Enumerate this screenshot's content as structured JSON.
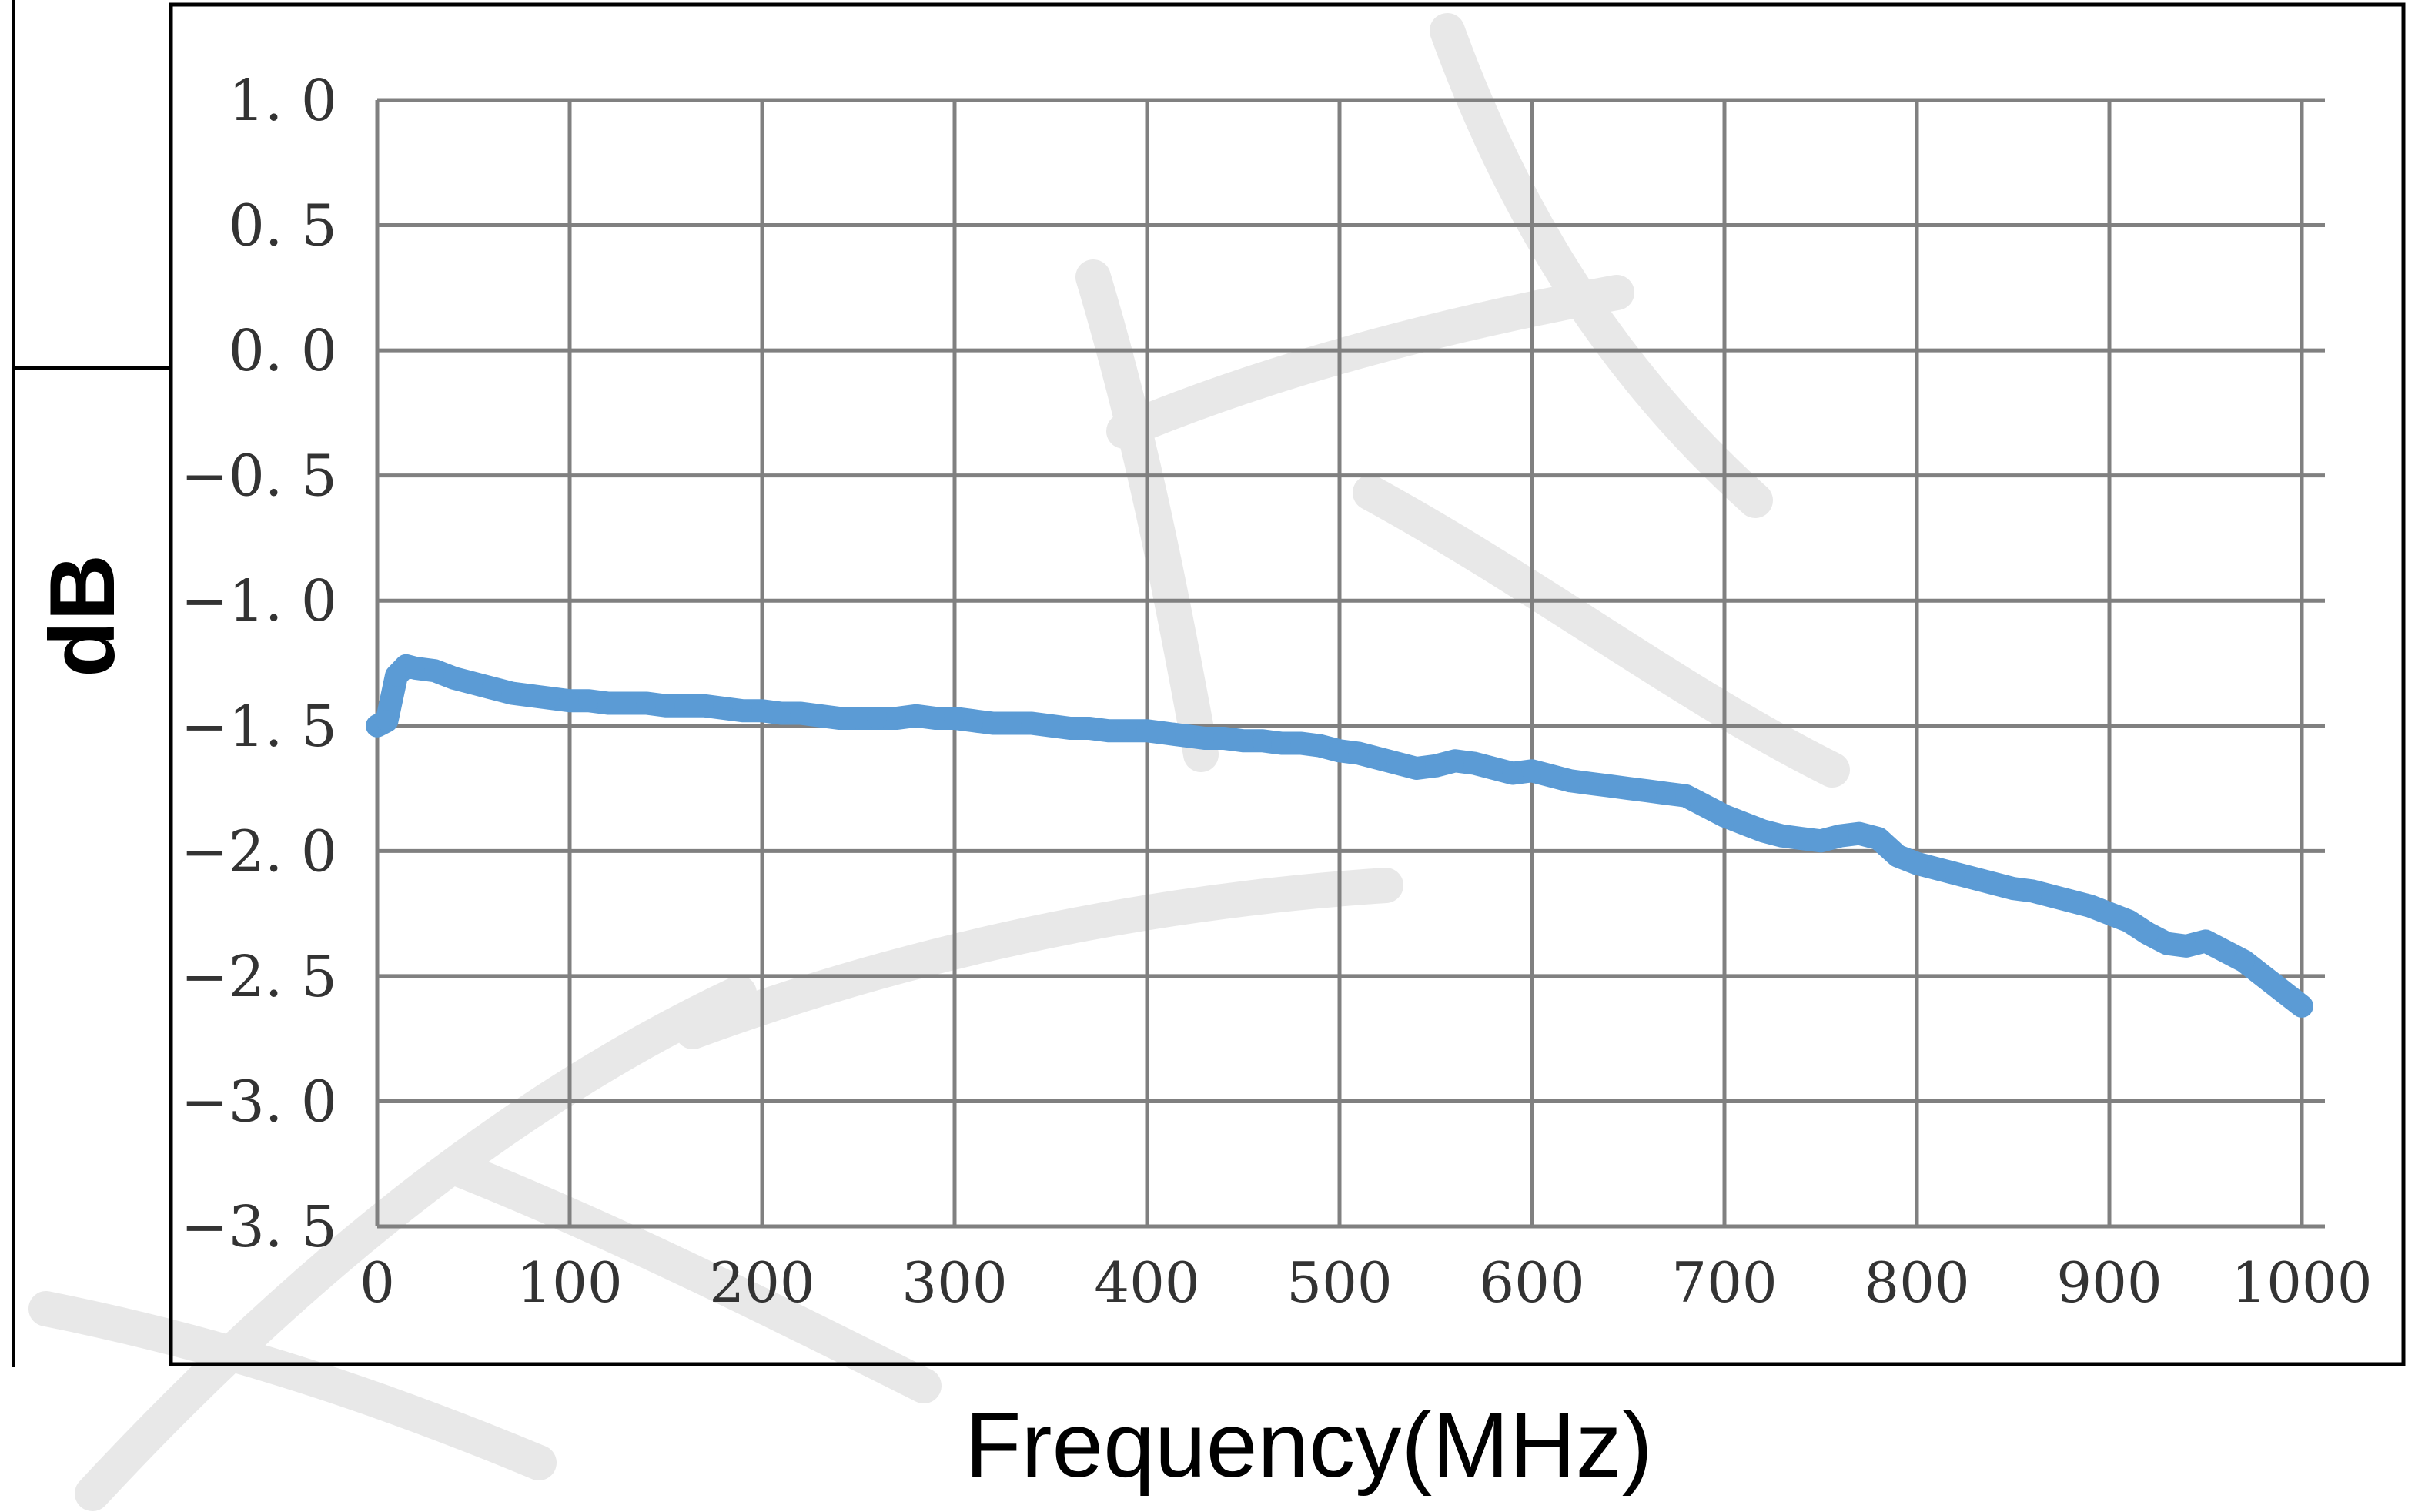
{
  "chart_data": {
    "type": "line",
    "title": "",
    "xlabel": "Frequency(MHz)",
    "ylabel": "dB",
    "xlim": [
      0,
      1000
    ],
    "ylim": [
      -3.5,
      1.0
    ],
    "x_ticks": [
      "0",
      "100",
      "200",
      "300",
      "400",
      "500",
      "600",
      "700",
      "800",
      "900",
      "1000"
    ],
    "y_ticks": [
      "1. 0",
      "0. 5",
      "0. 0",
      "−0. 5",
      "−1. 0",
      "−1. 5",
      "−2. 0",
      "−2. 5",
      "−3. 0",
      "−3. 5"
    ],
    "grid": true,
    "legend": "none",
    "colors": {
      "series": "#5b9bd5",
      "grid": "#808080",
      "frame": "#000000",
      "watermark": "#e8e8e8"
    },
    "series": [
      {
        "x": [
          0,
          5,
          10,
          15,
          20,
          30,
          40,
          50,
          60,
          70,
          80,
          90,
          100,
          110,
          120,
          130,
          140,
          150,
          160,
          170,
          180,
          190,
          200,
          210,
          220,
          230,
          240,
          250,
          260,
          270,
          280,
          290,
          300,
          310,
          320,
          330,
          340,
          350,
          360,
          370,
          380,
          390,
          400,
          410,
          420,
          430,
          440,
          450,
          460,
          470,
          480,
          490,
          500,
          510,
          520,
          530,
          540,
          550,
          560,
          570,
          580,
          590,
          600,
          610,
          620,
          630,
          640,
          650,
          660,
          670,
          680,
          690,
          700,
          710,
          720,
          730,
          740,
          750,
          760,
          770,
          780,
          790,
          800,
          810,
          820,
          830,
          840,
          850,
          860,
          870,
          880,
          890,
          900,
          910,
          920,
          930,
          940,
          950,
          960,
          970,
          980,
          990,
          1000
        ],
        "values": [
          -1.5,
          -1.48,
          -1.3,
          -1.26,
          -1.27,
          -1.28,
          -1.31,
          -1.33,
          -1.35,
          -1.37,
          -1.38,
          -1.39,
          -1.4,
          -1.4,
          -1.41,
          -1.41,
          -1.41,
          -1.42,
          -1.42,
          -1.42,
          -1.43,
          -1.44,
          -1.44,
          -1.45,
          -1.45,
          -1.46,
          -1.47,
          -1.47,
          -1.47,
          -1.47,
          -1.46,
          -1.47,
          -1.47,
          -1.48,
          -1.49,
          -1.49,
          -1.49,
          -1.5,
          -1.51,
          -1.51,
          -1.52,
          -1.52,
          -1.52,
          -1.53,
          -1.54,
          -1.55,
          -1.55,
          -1.56,
          -1.56,
          -1.57,
          -1.57,
          -1.58,
          -1.6,
          -1.61,
          -1.63,
          -1.65,
          -1.67,
          -1.66,
          -1.64,
          -1.65,
          -1.67,
          -1.69,
          -1.68,
          -1.7,
          -1.72,
          -1.73,
          -1.74,
          -1.75,
          -1.76,
          -1.77,
          -1.78,
          -1.82,
          -1.86,
          -1.89,
          -1.92,
          -1.94,
          -1.95,
          -1.96,
          -1.94,
          -1.93,
          -1.95,
          -2.02,
          -2.05,
          -2.07,
          -2.09,
          -2.11,
          -2.13,
          -2.15,
          -2.16,
          -2.18,
          -2.2,
          -2.22,
          -2.25,
          -2.28,
          -2.33,
          -2.37,
          -2.38,
          -2.36,
          -2.4,
          -2.44,
          -2.5,
          -2.56,
          -2.62
        ]
      }
    ]
  }
}
